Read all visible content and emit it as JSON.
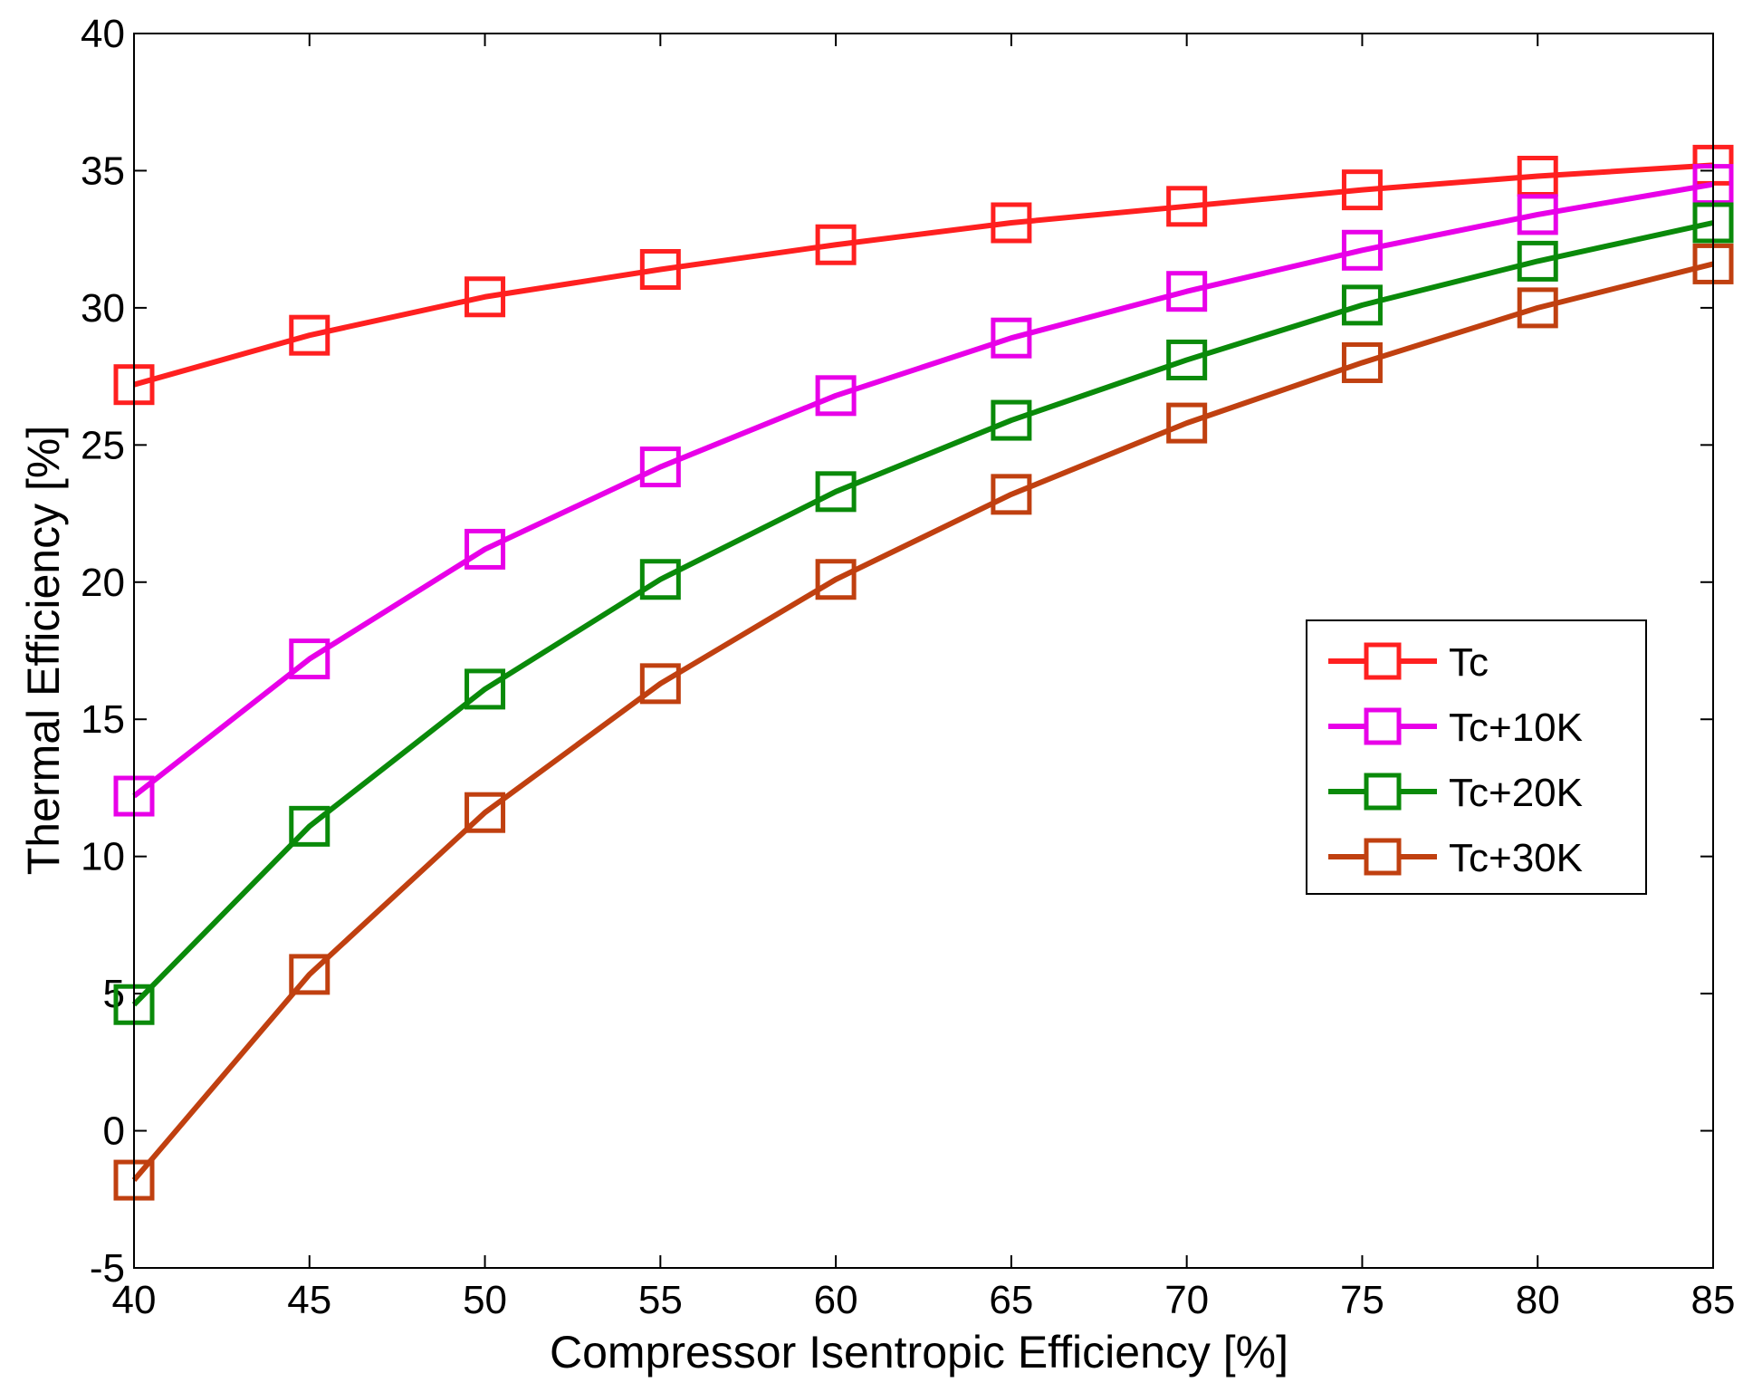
{
  "chart_data": {
    "type": "line",
    "title": "",
    "xlabel": "Compressor Isentropic Efficiency [%]",
    "ylabel": "Thermal Efficiency [%]",
    "xlim": [
      40,
      85
    ],
    "ylim": [
      -5,
      40
    ],
    "xticks": [
      "40",
      "45",
      "50",
      "55",
      "60",
      "65",
      "70",
      "75",
      "80",
      "85"
    ],
    "yticks": [
      "-5",
      "0",
      "5",
      "10",
      "15",
      "20",
      "25",
      "30",
      "35",
      "40"
    ],
    "grid": false,
    "legend_position": "right",
    "marker": "square",
    "x": [
      40,
      45,
      50,
      55,
      60,
      65,
      70,
      75,
      80,
      85
    ],
    "series": [
      {
        "name": "Tc",
        "color": "#ff2020",
        "values": [
          27.2,
          29.0,
          30.4,
          31.4,
          32.3,
          33.1,
          33.7,
          34.3,
          34.8,
          35.2
        ]
      },
      {
        "name": "Tc+10K",
        "color": "#e800e8",
        "values": [
          12.2,
          17.2,
          21.2,
          24.2,
          26.8,
          28.9,
          30.6,
          32.1,
          33.4,
          34.5
        ]
      },
      {
        "name": "Tc+20K",
        "color": "#0a8a0a",
        "values": [
          4.6,
          11.1,
          16.1,
          20.1,
          23.3,
          25.9,
          28.1,
          30.1,
          31.7,
          33.1
        ]
      },
      {
        "name": "Tc+30K",
        "color": "#c04010",
        "values": [
          -1.8,
          5.7,
          11.6,
          16.3,
          20.1,
          23.2,
          25.8,
          28.0,
          30.0,
          31.6
        ]
      }
    ]
  }
}
